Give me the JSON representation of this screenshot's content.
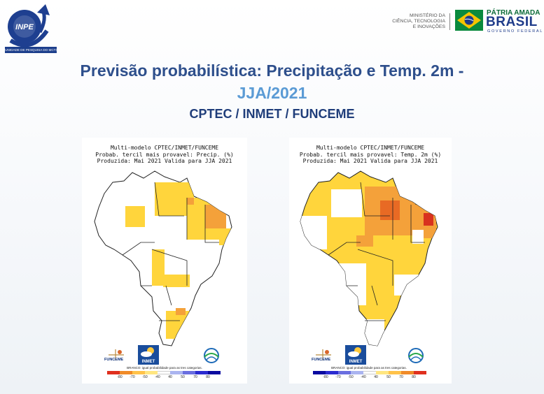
{
  "header": {
    "inpe_logo_text": "INPE",
    "inpe_caption": "UNIDADE DE PESQUISA DO MCTI",
    "ministry_lines": [
      "MINISTÉRIO DA",
      "CIÊNCIA, TECNOLOGIA",
      "E INOVAÇÕES"
    ],
    "gov_line1": "PÁTRIA AMADA",
    "gov_line2": "BRASIL",
    "gov_line3": "GOVERNO FEDERAL"
  },
  "title": {
    "main": "Previsão probabilística: Precipitação e Temp. 2m -",
    "period": "JJA/2021",
    "subtitle": "CPTEC / INMET / FUNCEME"
  },
  "maps": {
    "precip": {
      "header_line1": "Multi-modelo CPTEC/INMET/FUNCEME",
      "header_line2": "Probab. tercil mais provavel: Precip. (%)",
      "header_line3": "Produzida: Mai 2021  Valida para JJA 2021",
      "logo_funceme": "FUNCEME",
      "logo_inmet": "INMET",
      "legend_caption": "BRANCO: igual probabilidade para as tres categorias.",
      "legend_ticks": [
        "-80",
        "-70",
        "-50",
        "-40",
        "40",
        "50",
        "70",
        "80"
      ]
    },
    "temp": {
      "header_line1": "Multi-modelo CPTEC/INMET/FUNCEME",
      "header_line2": "Probab. tercil mais provavel: Temp. 2m (%)",
      "header_line3": "Produzida: Mai 2021  Valida para JJA 2021",
      "logo_funceme": "FUNCEME",
      "logo_inmet": "INMET",
      "legend_caption": "BRANCO: igual probabilidade para as tres categorias.",
      "legend_ticks": [
        "-80",
        "-70",
        "-50",
        "-40",
        "40",
        "50",
        "70",
        "80"
      ]
    },
    "legend_colors": [
      "#e0301e",
      "#f08a28",
      "#ffc24a",
      "#ffe680",
      "#ffffff",
      "#aab4f0",
      "#6a6ee0",
      "#2b2bd0",
      "#0a0aa0"
    ]
  },
  "colors": {
    "title_blue": "#2e4f8c",
    "period_blue": "#5b9bd5",
    "yellow": "#ffd53c",
    "orange": "#f4a13a",
    "red": "#d8321e"
  }
}
